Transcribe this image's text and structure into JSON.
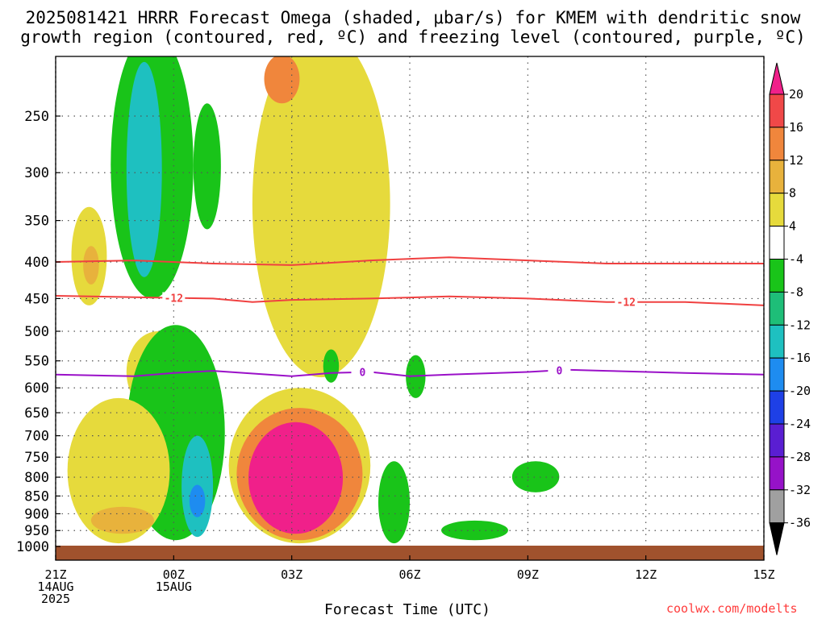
{
  "title_line1": "2025081421 HRRR Forecast Omega (shaded, μbar/s) for KMEM with dendritic snow",
  "title_line2": "growth region (contoured, red, ºC) and freezing level (contoured, purple, ºC)",
  "credit": "coolwx.com/modelts",
  "chart_data": {
    "type": "contour",
    "xlabel": "Forecast Time (UTC)",
    "x_ticks": [
      {
        "hour": 0,
        "label": [
          "21Z",
          "14AUG",
          "2025"
        ]
      },
      {
        "hour": 3,
        "label": [
          "00Z",
          "15AUG"
        ]
      },
      {
        "hour": 6,
        "label": [
          "03Z"
        ]
      },
      {
        "hour": 9,
        "label": [
          "06Z"
        ]
      },
      {
        "hour": 12,
        "label": [
          "09Z"
        ]
      },
      {
        "hour": 15,
        "label": [
          "12Z"
        ]
      },
      {
        "hour": 18,
        "label": [
          "15Z"
        ]
      }
    ],
    "xlim": [
      0,
      18
    ],
    "ylabel": "",
    "y_ticks": [
      250,
      300,
      350,
      400,
      450,
      500,
      550,
      600,
      650,
      700,
      750,
      800,
      850,
      900,
      950,
      1000
    ],
    "ylim": [
      200,
      1030
    ],
    "y_scale": "log",
    "y_inverted": true,
    "grid": true,
    "colorbar": {
      "labels": [
        "20",
        "16",
        "12",
        "8",
        "4",
        "-4",
        "-8",
        "-12",
        "-16",
        "-20",
        "-24",
        "-28",
        "-32",
        "-36"
      ],
      "colors": [
        "#f0208a",
        "#f04848",
        "#f0863c",
        "#e8b23c",
        "#e6da3c",
        "#ffffff",
        "#19c419",
        "#1ebe78",
        "#1ec0c0",
        "#1e8cf0",
        "#1e40e6",
        "#5a1ed2",
        "#9612c8",
        "#a0a0a0",
        "#000000"
      ]
    },
    "contour_lines": [
      {
        "name": "-12 °C (dendritic growth region)",
        "color": "#f04040",
        "label": "-12",
        "points": [
          [
            0,
            400
          ],
          [
            2,
            398
          ],
          [
            4,
            402
          ],
          [
            6,
            404
          ],
          [
            8,
            398
          ],
          [
            10,
            394
          ],
          [
            12,
            398
          ],
          [
            14,
            402
          ],
          [
            16,
            402
          ],
          [
            18,
            402
          ]
        ]
      },
      {
        "name": "-12 °C (dendritic growth region)",
        "color": "#f04040",
        "label": "-12",
        "label_hours": [
          3,
          14.5
        ],
        "points": [
          [
            0,
            446
          ],
          [
            2,
            448
          ],
          [
            4,
            450
          ],
          [
            5,
            455
          ],
          [
            6,
            452
          ],
          [
            8,
            450
          ],
          [
            10,
            447
          ],
          [
            12,
            450
          ],
          [
            14,
            455
          ],
          [
            16,
            455
          ],
          [
            18,
            460
          ]
        ]
      },
      {
        "name": "freezing level",
        "color": "#9a10c8",
        "label": "0",
        "label_hours": [
          7.8,
          12.8
        ],
        "points": [
          [
            0,
            575
          ],
          [
            2,
            578
          ],
          [
            3,
            572
          ],
          [
            4,
            568
          ],
          [
            6,
            578
          ],
          [
            7,
            572
          ],
          [
            8,
            570
          ],
          [
            9,
            578
          ],
          [
            10,
            575
          ],
          [
            12,
            570
          ],
          [
            13,
            566
          ],
          [
            14,
            568
          ],
          [
            16,
            572
          ],
          [
            18,
            575
          ]
        ]
      }
    ],
    "shaded_regions": [
      {
        "value_range": [
          -12,
          -8
        ],
        "color": "#19c419",
        "hours": [
          1.4,
          3.5
        ],
        "pressure": [
          190,
          450
        ]
      },
      {
        "value_range": [
          -16,
          -12
        ],
        "color": "#1ec0c0",
        "hours": [
          1.8,
          2.7
        ],
        "pressure": [
          210,
          420
        ]
      },
      {
        "value_range": [
          -12,
          -8
        ],
        "color": "#19c419",
        "hours": [
          3.5,
          4.2
        ],
        "pressure": [
          240,
          360
        ]
      },
      {
        "value_range": [
          4,
          8
        ],
        "color": "#e6da3c",
        "hours": [
          5.0,
          8.5
        ],
        "pressure": [
          190,
          580
        ]
      },
      {
        "value_range": [
          12,
          16
        ],
        "color": "#f0863c",
        "hours": [
          5.3,
          6.2
        ],
        "pressure": [
          205,
          240
        ]
      },
      {
        "value_range": [
          4,
          8
        ],
        "color": "#e6da3c",
        "hours": [
          0.4,
          1.3
        ],
        "pressure": [
          335,
          460
        ]
      },
      {
        "value_range": [
          8,
          12
        ],
        "color": "#e8b23c",
        "hours": [
          0.7,
          1.1
        ],
        "pressure": [
          380,
          430
        ]
      },
      {
        "value_range": [
          4,
          8
        ],
        "color": "#e6da3c",
        "hours": [
          1.8,
          3.4
        ],
        "pressure": [
          500,
          650
        ]
      },
      {
        "value_range": [
          12,
          16
        ],
        "color": "#f0863c",
        "hours": [
          2.7,
          3.2
        ],
        "pressure": [
          560,
          620
        ]
      },
      {
        "value_range": [
          -8,
          -4
        ],
        "color": "#19c419",
        "hours": [
          1.8,
          4.3
        ],
        "pressure": [
          490,
          980
        ]
      },
      {
        "value_range": [
          -16,
          -12
        ],
        "color": "#1ec0c0",
        "hours": [
          3.2,
          4.0
        ],
        "pressure": [
          700,
          970
        ]
      },
      {
        "value_range": [
          -20,
          -16
        ],
        "color": "#1e8cf0",
        "hours": [
          3.4,
          3.8
        ],
        "pressure": [
          820,
          910
        ]
      },
      {
        "value_range": [
          4,
          8
        ],
        "color": "#e6da3c",
        "hours": [
          4.4,
          8.0
        ],
        "pressure": [
          600,
          990
        ]
      },
      {
        "value_range": [
          8,
          16
        ],
        "color": "#f0863c",
        "hours": [
          4.6,
          7.8
        ],
        "pressure": [
          640,
          980
        ]
      },
      {
        "value_range": [
          20,
          99
        ],
        "color": "#f0208a",
        "hours": [
          4.9,
          7.3
        ],
        "pressure": [
          670,
          960
        ]
      },
      {
        "value_range": [
          4,
          8
        ],
        "color": "#e6da3c",
        "hours": [
          0.3,
          2.9
        ],
        "pressure": [
          620,
          990
        ]
      },
      {
        "value_range": [
          8,
          12
        ],
        "color": "#e8b23c",
        "hours": [
          0.9,
          2.5
        ],
        "pressure": [
          880,
          960
        ]
      },
      {
        "value_range": [
          -8,
          -4
        ],
        "color": "#19c419",
        "hours": [
          6.8,
          7.2
        ],
        "pressure": [
          530,
          590
        ]
      },
      {
        "value_range": [
          -8,
          -4
        ],
        "color": "#19c419",
        "hours": [
          8.2,
          9.0
        ],
        "pressure": [
          760,
          990
        ]
      },
      {
        "value_range": [
          -8,
          -4
        ],
        "color": "#19c419",
        "hours": [
          8.9,
          9.4
        ],
        "pressure": [
          540,
          620
        ]
      },
      {
        "value_range": [
          -8,
          -4
        ],
        "color": "#19c419",
        "hours": [
          9.8,
          11.5
        ],
        "pressure": [
          920,
          980
        ]
      },
      {
        "value_range": [
          -8,
          -4
        ],
        "color": "#19c419",
        "hours": [
          11.6,
          12.8
        ],
        "pressure": [
          760,
          840
        ]
      }
    ]
  }
}
